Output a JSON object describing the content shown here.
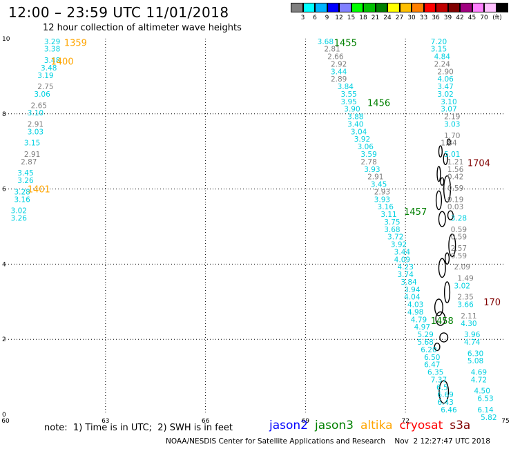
{
  "header": {
    "title": "12:00 – 23:59 UTC 11/01/2018",
    "subtitle": "12 hour collection of altimeter wave heights"
  },
  "legend": {
    "colors": [
      "#7f7f7f",
      "#00ffff",
      "#00b4ff",
      "#0000ff",
      "#8080ff",
      "#00ff00",
      "#00c000",
      "#008000",
      "#ffff00",
      "#ffc000",
      "#ff8000",
      "#ff0000",
      "#c00000",
      "#800000",
      "#a00080",
      "#ff80ff",
      "#ffc0ff",
      "#000000"
    ],
    "labels": [
      "3",
      "6",
      "9",
      "12",
      "15",
      "18",
      "21",
      "24",
      "27",
      "30",
      "33",
      "36",
      "39",
      "42",
      "45",
      "70",
      "(ft)"
    ]
  },
  "axes": {
    "x_ticks": [
      "60",
      "63",
      "66",
      "69",
      "72",
      "75"
    ],
    "y_ticks": [
      "10",
      "8",
      "6",
      "4",
      "2",
      "0"
    ]
  },
  "footer": {
    "note": "note:  1) Time is in UTC;  2) SWH is in feet",
    "satellites": [
      {
        "name": "jason2",
        "color": "#0000ff"
      },
      {
        "name": "jason3",
        "color": "#008000"
      },
      {
        "name": "altika",
        "color": "#ffa500"
      },
      {
        "name": "cryosat",
        "color": "#ff0000"
      },
      {
        "name": "s3a",
        "color": "#800000"
      }
    ],
    "credit": "NOAA/NESDIS Center for Satellite Applications and Research    Nov  2 12:27:47 UTC 2018"
  },
  "tracks": [
    {
      "satellite": "altika",
      "times": [
        {
          "label": "1359",
          "lon": 62.1,
          "lat": 9.9
        },
        {
          "label": "1400",
          "lon": 61.7,
          "lat": 9.4
        },
        {
          "label": "1401",
          "lon": 61.0,
          "lat": 6.0
        }
      ],
      "points": [
        {
          "lat": 9.93,
          "lon": 61.4,
          "v": "3.29"
        },
        {
          "lat": 9.73,
          "lon": 61.4,
          "v": "3.38"
        },
        {
          "lat": 9.43,
          "lon": 61.4,
          "v": "3.48"
        },
        {
          "lat": 9.23,
          "lon": 61.3,
          "v": "3.48"
        },
        {
          "lat": 9.03,
          "lon": 61.2,
          "v": "3.19"
        },
        {
          "lat": 8.73,
          "lon": 61.2,
          "v": "2.75"
        },
        {
          "lat": 8.53,
          "lon": 61.1,
          "v": "3.06"
        },
        {
          "lat": 8.23,
          "lon": 61.0,
          "v": "2.65"
        },
        {
          "lat": 8.03,
          "lon": 60.9,
          "v": "3.10"
        },
        {
          "lat": 7.73,
          "lon": 60.9,
          "v": "2.91"
        },
        {
          "lat": 7.53,
          "lon": 60.9,
          "v": "3.03"
        },
        {
          "lat": 7.23,
          "lon": 60.8,
          "v": "3.15"
        },
        {
          "lat": 6.93,
          "lon": 60.8,
          "v": "2.91"
        },
        {
          "lat": 6.73,
          "lon": 60.7,
          "v": "2.87"
        },
        {
          "lat": 6.43,
          "lon": 60.6,
          "v": "3.45"
        },
        {
          "lat": 6.23,
          "lon": 60.6,
          "v": "3.26"
        },
        {
          "lat": 5.93,
          "lon": 60.5,
          "v": "3.28"
        },
        {
          "lat": 5.73,
          "lon": 60.5,
          "v": "3.16"
        },
        {
          "lat": 5.43,
          "lon": 60.4,
          "v": "3.02"
        },
        {
          "lat": 5.23,
          "lon": 60.4,
          "v": "3.26"
        }
      ]
    },
    {
      "satellite": "jason3",
      "times": [
        {
          "label": "1455",
          "lon": 70.2,
          "lat": 9.9
        },
        {
          "label": "1456",
          "lon": 71.2,
          "lat": 8.3
        },
        {
          "label": "1457",
          "lon": 72.3,
          "lat": 5.4
        },
        {
          "label": "1458",
          "lon": 73.1,
          "lat": 2.5
        }
      ],
      "points": [
        {
          "lat": 9.93,
          "lon": 69.6,
          "v": "3.68"
        },
        {
          "lat": 9.73,
          "lon": 69.8,
          "v": "2.81"
        },
        {
          "lat": 9.53,
          "lon": 69.9,
          "v": "2.66"
        },
        {
          "lat": 9.33,
          "lon": 70.0,
          "v": "2.92"
        },
        {
          "lat": 9.13,
          "lon": 70.0,
          "v": "3.44"
        },
        {
          "lat": 8.93,
          "lon": 70.0,
          "v": "2.89"
        },
        {
          "lat": 8.73,
          "lon": 70.2,
          "v": "3.84"
        },
        {
          "lat": 8.53,
          "lon": 70.3,
          "v": "3.55"
        },
        {
          "lat": 8.33,
          "lon": 70.3,
          "v": "3.95"
        },
        {
          "lat": 8.13,
          "lon": 70.4,
          "v": "3.90"
        },
        {
          "lat": 7.93,
          "lon": 70.5,
          "v": "3.88"
        },
        {
          "lat": 7.73,
          "lon": 70.5,
          "v": "3.40"
        },
        {
          "lat": 7.53,
          "lon": 70.6,
          "v": "3.04"
        },
        {
          "lat": 7.33,
          "lon": 70.7,
          "v": "3.92"
        },
        {
          "lat": 7.13,
          "lon": 70.8,
          "v": "3.06"
        },
        {
          "lat": 6.93,
          "lon": 70.9,
          "v": "3.59"
        },
        {
          "lat": 6.73,
          "lon": 70.9,
          "v": "2.78"
        },
        {
          "lat": 6.53,
          "lon": 71.0,
          "v": "3.93"
        },
        {
          "lat": 6.33,
          "lon": 71.1,
          "v": "2.91"
        },
        {
          "lat": 6.13,
          "lon": 71.2,
          "v": "3.45"
        },
        {
          "lat": 5.93,
          "lon": 71.3,
          "v": "2.93"
        },
        {
          "lat": 5.73,
          "lon": 71.3,
          "v": "3.93"
        },
        {
          "lat": 5.53,
          "lon": 71.4,
          "v": "3.16"
        },
        {
          "lat": 5.33,
          "lon": 71.5,
          "v": "3.11"
        },
        {
          "lat": 5.13,
          "lon": 71.6,
          "v": "3.75"
        },
        {
          "lat": 4.93,
          "lon": 71.6,
          "v": "3.68"
        },
        {
          "lat": 4.73,
          "lon": 71.7,
          "v": "3.72"
        },
        {
          "lat": 4.53,
          "lon": 71.8,
          "v": "3.92"
        },
        {
          "lat": 4.33,
          "lon": 71.9,
          "v": "3.44"
        },
        {
          "lat": 4.13,
          "lon": 71.9,
          "v": "4.09"
        },
        {
          "lat": 3.93,
          "lon": 72.0,
          "v": "4.23"
        },
        {
          "lat": 3.73,
          "lon": 72.0,
          "v": "3.74"
        },
        {
          "lat": 3.53,
          "lon": 72.1,
          "v": "3.84"
        },
        {
          "lat": 3.33,
          "lon": 72.2,
          "v": "3.94"
        },
        {
          "lat": 3.13,
          "lon": 72.2,
          "v": "4.04"
        },
        {
          "lat": 2.93,
          "lon": 72.3,
          "v": "4.03"
        },
        {
          "lat": 2.73,
          "lon": 72.3,
          "v": "4.98"
        },
        {
          "lat": 2.53,
          "lon": 72.4,
          "v": "4.79"
        },
        {
          "lat": 2.33,
          "lon": 72.5,
          "v": "4.97"
        },
        {
          "lat": 2.13,
          "lon": 72.6,
          "v": "5.29"
        },
        {
          "lat": 1.93,
          "lon": 72.6,
          "v": "5.68"
        },
        {
          "lat": 1.73,
          "lon": 72.7,
          "v": "6.20"
        },
        {
          "lat": 1.53,
          "lon": 72.8,
          "v": "6.50"
        },
        {
          "lat": 1.33,
          "lon": 72.8,
          "v": "6.47"
        },
        {
          "lat": 1.13,
          "lon": 72.9,
          "v": "6.35"
        },
        {
          "lat": 0.93,
          "lon": 73.0,
          "v": "7.37"
        },
        {
          "lat": 0.73,
          "lon": 73.1,
          "v": "6.5"
        },
        {
          "lat": 0.53,
          "lon": 73.2,
          "v": "6.69"
        },
        {
          "lat": 0.33,
          "lon": 73.2,
          "v": "6.43"
        },
        {
          "lat": 0.13,
          "lon": 73.3,
          "v": "6.46"
        }
      ]
    },
    {
      "satellite": "s3a",
      "times": [
        {
          "label": "1704",
          "lon": 74.2,
          "lat": 6.7
        },
        {
          "label": "170",
          "lon": 74.6,
          "lat": 3.0
        }
      ],
      "points": [
        {
          "lat": 9.93,
          "lon": 73.0,
          "v": "7.20"
        },
        {
          "lat": 9.73,
          "lon": 73.0,
          "v": "3.15"
        },
        {
          "lat": 9.53,
          "lon": 73.1,
          "v": "4.84"
        },
        {
          "lat": 9.33,
          "lon": 73.1,
          "v": "2.24"
        },
        {
          "lat": 9.13,
          "lon": 73.2,
          "v": "2.90"
        },
        {
          "lat": 8.93,
          "lon": 73.2,
          "v": "4.06"
        },
        {
          "lat": 8.73,
          "lon": 73.2,
          "v": "3.47"
        },
        {
          "lat": 8.53,
          "lon": 73.2,
          "v": "3.02"
        },
        {
          "lat": 8.33,
          "lon": 73.3,
          "v": "3.10"
        },
        {
          "lat": 8.13,
          "lon": 73.3,
          "v": "3.07"
        },
        {
          "lat": 7.93,
          "lon": 73.4,
          "v": "2.19"
        },
        {
          "lat": 7.73,
          "lon": 73.4,
          "v": "3.03"
        },
        {
          "lat": 7.43,
          "lon": 73.4,
          "v": "1.70"
        },
        {
          "lat": 7.23,
          "lon": 73.3,
          "v": "1.84"
        },
        {
          "lat": 6.93,
          "lon": 73.4,
          "v": "5.01"
        },
        {
          "lat": 6.73,
          "lon": 73.5,
          "v": "1.21"
        },
        {
          "lat": 6.53,
          "lon": 73.5,
          "v": "1.56"
        },
        {
          "lat": 6.33,
          "lon": 73.5,
          "v": "0.42"
        },
        {
          "lat": 6.03,
          "lon": 73.5,
          "v": "0.59"
        },
        {
          "lat": 5.73,
          "lon": 73.5,
          "v": "0.19"
        },
        {
          "lat": 5.53,
          "lon": 73.5,
          "v": "0.03"
        },
        {
          "lat": 5.23,
          "lon": 73.6,
          "v": "3.28"
        },
        {
          "lat": 4.93,
          "lon": 73.6,
          "v": "0.59"
        },
        {
          "lat": 4.73,
          "lon": 73.6,
          "v": "0.59"
        },
        {
          "lat": 4.43,
          "lon": 73.6,
          "v": "2.57"
        },
        {
          "lat": 4.23,
          "lon": 73.6,
          "v": "0.59"
        },
        {
          "lat": 3.93,
          "lon": 73.7,
          "v": "2.09"
        },
        {
          "lat": 3.63,
          "lon": 73.8,
          "v": "1.49"
        },
        {
          "lat": 3.43,
          "lon": 73.7,
          "v": "3.02"
        },
        {
          "lat": 3.13,
          "lon": 73.8,
          "v": "2.35"
        },
        {
          "lat": 2.93,
          "lon": 73.8,
          "v": "3.66"
        },
        {
          "lat": 2.63,
          "lon": 73.9,
          "v": "2.11"
        },
        {
          "lat": 2.43,
          "lon": 73.9,
          "v": "4.30"
        },
        {
          "lat": 2.13,
          "lon": 74.0,
          "v": "3.96"
        },
        {
          "lat": 1.93,
          "lon": 74.0,
          "v": "4.74"
        },
        {
          "lat": 1.63,
          "lon": 74.1,
          "v": "6.30"
        },
        {
          "lat": 1.43,
          "lon": 74.1,
          "v": "5.08"
        },
        {
          "lat": 1.13,
          "lon": 74.2,
          "v": "4.69"
        },
        {
          "lat": 0.93,
          "lon": 74.2,
          "v": "4.72"
        },
        {
          "lat": 0.63,
          "lon": 74.3,
          "v": "4.50"
        },
        {
          "lat": 0.43,
          "lon": 74.4,
          "v": "6.53"
        },
        {
          "lat": 0.13,
          "lon": 74.4,
          "v": "6.14"
        },
        {
          "lat": -0.07,
          "lon": 74.5,
          "v": "5.82"
        }
      ]
    }
  ]
}
